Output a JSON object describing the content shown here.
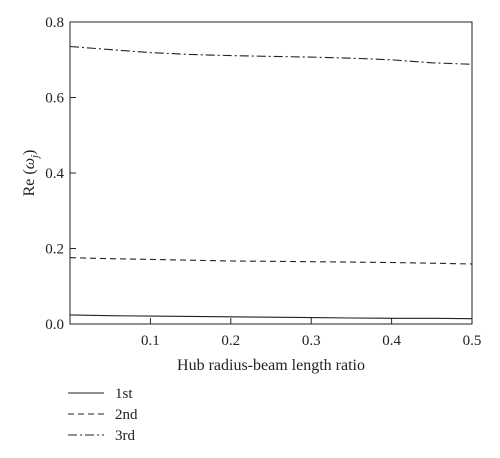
{
  "chart_data": {
    "type": "line",
    "title": "",
    "xlabel": "Hub radius-beam length ratio",
    "ylabel_main": "Re (",
    "ylabel_symbol": "ω",
    "ylabel_sub": "j",
    "ylabel_close": ")",
    "xlim": [
      0,
      0.5
    ],
    "ylim": [
      0,
      0.8
    ],
    "xticks": [
      0.1,
      0.2,
      0.3,
      0.4,
      0.5
    ],
    "xtick_labels": [
      "0.1",
      "0.2",
      "0.3",
      "0.4",
      "0.5"
    ],
    "yticks": [
      0.0,
      0.2,
      0.4,
      0.6,
      0.8
    ],
    "ytick_labels": [
      "0.0",
      "0.2",
      "0.4",
      "0.6",
      "0.8"
    ],
    "grid": false,
    "legend_position": "below-left",
    "x": [
      0,
      0.05,
      0.1,
      0.15,
      0.2,
      0.25,
      0.3,
      0.35,
      0.4,
      0.45,
      0.5
    ],
    "series": [
      {
        "name": "1st",
        "style": "solid",
        "values": [
          0.024,
          0.022,
          0.021,
          0.02,
          0.019,
          0.018,
          0.017,
          0.016,
          0.015,
          0.015,
          0.014
        ]
      },
      {
        "name": "2nd",
        "style": "dashed",
        "values": [
          0.176,
          0.173,
          0.171,
          0.169,
          0.167,
          0.166,
          0.165,
          0.164,
          0.163,
          0.161,
          0.159
        ]
      },
      {
        "name": "3rd",
        "style": "dashdot",
        "values": [
          0.735,
          0.727,
          0.719,
          0.714,
          0.711,
          0.709,
          0.707,
          0.704,
          0.7,
          0.692,
          0.688
        ]
      }
    ],
    "line_color": "#222222"
  }
}
